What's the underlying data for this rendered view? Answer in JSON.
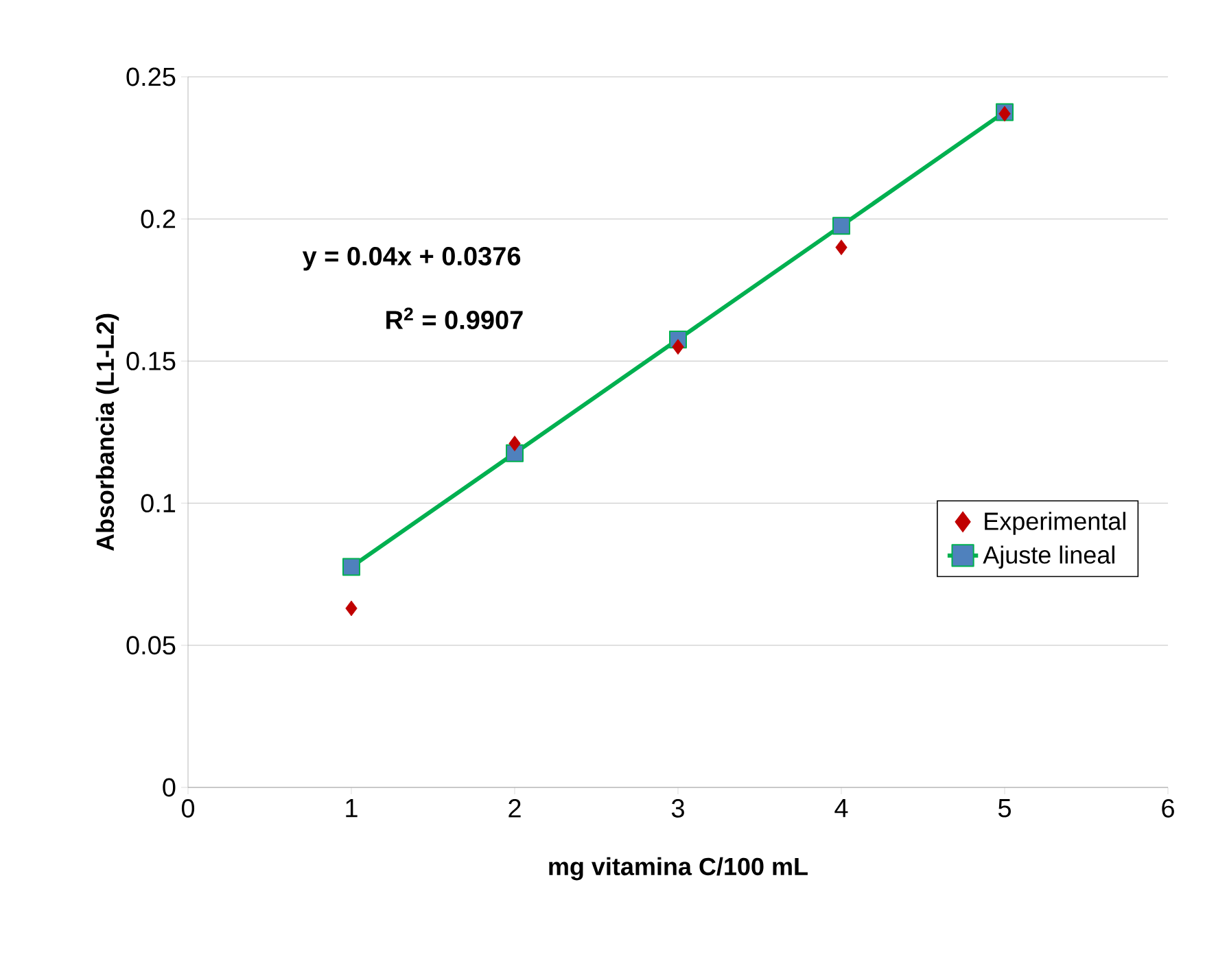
{
  "chart_data": {
    "type": "scatter",
    "xlabel": "mg vitamina C/100 mL",
    "ylabel": "Absorbancia (L1-L2)",
    "x": [
      1,
      2,
      3,
      4,
      5
    ],
    "series": [
      {
        "name": "Experimental",
        "color": "#c00000",
        "marker": "diamond",
        "values": [
          0.063,
          0.121,
          0.155,
          0.19,
          0.237
        ]
      },
      {
        "name": "Ajuste lineal",
        "type": "line",
        "color": "#00b050",
        "marker": "square",
        "values": [
          0.0776,
          0.1176,
          0.1576,
          0.1976,
          0.2376
        ]
      }
    ],
    "annotations": [
      "y = 0.04x + 0.0376",
      "R$^{2}$ = 0.9907"
    ],
    "xlim": [
      0,
      6
    ],
    "xticks": [
      0,
      1,
      2,
      3,
      4,
      5,
      6
    ],
    "ylim": [
      0,
      0.25
    ],
    "yticks": [
      0,
      0.05,
      0.1,
      0.15,
      0.2,
      0.25
    ],
    "grid": "y",
    "legend": "right"
  }
}
